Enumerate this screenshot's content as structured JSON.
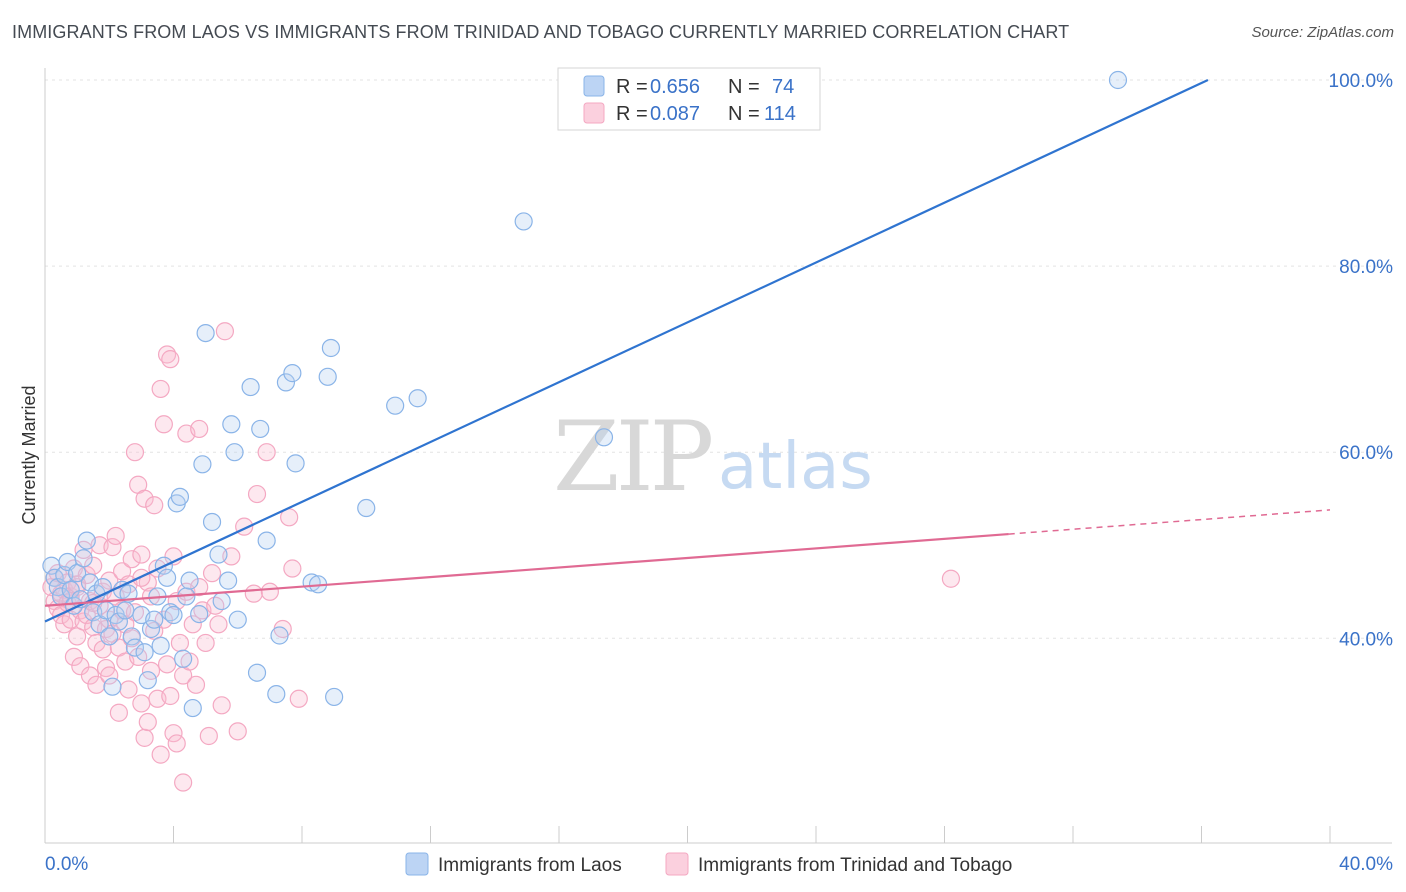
{
  "title": "IMMIGRANTS FROM LAOS VS IMMIGRANTS FROM TRINIDAD AND TOBAGO CURRENTLY MARRIED CORRELATION CHART",
  "source": "Source: ZipAtlas.com",
  "watermark": {
    "zip": "ZIP",
    "atlas": "atlas"
  },
  "chart_data": {
    "type": "scatter",
    "title": "IMMIGRANTS FROM LAOS VS IMMIGRANTS FROM TRINIDAD AND TOBAGO CURRENTLY MARRIED CORRELATION CHART",
    "xlabel": "",
    "ylabel": "Currently Married",
    "xlim": [
      0,
      40
    ],
    "ylim": [
      18,
      102
    ],
    "x_tick_labels": [
      "0.0%",
      "40.0%"
    ],
    "y_ticks": [
      40,
      60,
      80,
      100
    ],
    "y_tick_labels": [
      "40.0%",
      "60.0%",
      "80.0%",
      "100.0%"
    ],
    "legend": [
      {
        "label_r": "R = ",
        "r": "0.656",
        "label_n": "N = ",
        "n": "74"
      },
      {
        "label_r": "R = ",
        "r": "0.087",
        "label_n": "N = ",
        "n": "114"
      }
    ],
    "series": [
      {
        "name": "Immigrants from Laos",
        "color": "#8ab4e8",
        "line_color": "#2f74d0",
        "trend": {
          "x0": 0,
          "y0": 41.8,
          "x1": 36.2,
          "y1": 100,
          "dashed_to": null
        },
        "points": [
          [
            0.2,
            47.8
          ],
          [
            0.3,
            46.5
          ],
          [
            0.4,
            45.5
          ],
          [
            0.5,
            44.5
          ],
          [
            0.6,
            46.8
          ],
          [
            0.7,
            48.2
          ],
          [
            0.8,
            45.2
          ],
          [
            0.9,
            43.5
          ],
          [
            1.0,
            47.0
          ],
          [
            1.1,
            44.2
          ],
          [
            1.2,
            48.6
          ],
          [
            1.3,
            50.5
          ],
          [
            1.4,
            46.0
          ],
          [
            1.5,
            42.8
          ],
          [
            1.6,
            44.8
          ],
          [
            1.7,
            41.5
          ],
          [
            1.8,
            45.5
          ],
          [
            1.9,
            43.0
          ],
          [
            2.0,
            40.2
          ],
          [
            2.1,
            34.8
          ],
          [
            2.2,
            42.5
          ],
          [
            2.3,
            41.8
          ],
          [
            2.4,
            45.2
          ],
          [
            2.5,
            43.0
          ],
          [
            2.6,
            44.8
          ],
          [
            2.7,
            40.2
          ],
          [
            2.8,
            39.0
          ],
          [
            3.0,
            42.5
          ],
          [
            3.1,
            38.5
          ],
          [
            3.2,
            35.5
          ],
          [
            3.3,
            41.0
          ],
          [
            3.4,
            42.0
          ],
          [
            3.5,
            44.5
          ],
          [
            3.6,
            39.2
          ],
          [
            3.7,
            47.8
          ],
          [
            3.8,
            46.5
          ],
          [
            3.9,
            42.8
          ],
          [
            4.0,
            42.5
          ],
          [
            4.1,
            54.5
          ],
          [
            4.2,
            55.2
          ],
          [
            4.3,
            37.8
          ],
          [
            4.4,
            44.5
          ],
          [
            4.5,
            46.2
          ],
          [
            4.6,
            32.5
          ],
          [
            4.8,
            42.6
          ],
          [
            4.9,
            58.7
          ],
          [
            5.0,
            72.8
          ],
          [
            5.2,
            52.5
          ],
          [
            5.4,
            49.0
          ],
          [
            5.5,
            44.0
          ],
          [
            5.7,
            46.2
          ],
          [
            5.8,
            63.0
          ],
          [
            5.9,
            60.0
          ],
          [
            6.0,
            42.0
          ],
          [
            6.4,
            67.0
          ],
          [
            6.6,
            36.3
          ],
          [
            6.7,
            62.5
          ],
          [
            6.9,
            50.5
          ],
          [
            7.2,
            34.0
          ],
          [
            7.3,
            40.3
          ],
          [
            7.5,
            67.5
          ],
          [
            7.7,
            68.5
          ],
          [
            7.8,
            58.8
          ],
          [
            8.3,
            46.0
          ],
          [
            8.5,
            45.8
          ],
          [
            8.8,
            68.1
          ],
          [
            8.9,
            71.2
          ],
          [
            9.0,
            33.7
          ],
          [
            10.0,
            54.0
          ],
          [
            10.9,
            65.0
          ],
          [
            11.6,
            65.8
          ],
          [
            14.9,
            84.8
          ],
          [
            17.4,
            61.6
          ],
          [
            33.4,
            100.0
          ]
        ]
      },
      {
        "name": "Immigrants from Trinidad and Tobago",
        "color": "#f4a8c2",
        "line_color": "#e06a93",
        "trend": {
          "x0": 0,
          "y0": 43.5,
          "x1": 30.0,
          "y1": 51.2,
          "dashed_to": [
            40.0,
            53.8
          ]
        },
        "points": [
          [
            0.2,
            45.5
          ],
          [
            0.3,
            44.0
          ],
          [
            0.3,
            46.5
          ],
          [
            0.4,
            43.2
          ],
          [
            0.4,
            47.0
          ],
          [
            0.5,
            44.8
          ],
          [
            0.5,
            42.5
          ],
          [
            0.6,
            45.2
          ],
          [
            0.6,
            41.5
          ],
          [
            0.7,
            46.0
          ],
          [
            0.7,
            43.8
          ],
          [
            0.8,
            42.0
          ],
          [
            0.8,
            44.5
          ],
          [
            0.9,
            38.0
          ],
          [
            0.9,
            47.5
          ],
          [
            1.0,
            40.2
          ],
          [
            1.0,
            45.5
          ],
          [
            1.1,
            43.0
          ],
          [
            1.1,
            37.0
          ],
          [
            1.2,
            41.8
          ],
          [
            1.2,
            49.5
          ],
          [
            1.3,
            42.5
          ],
          [
            1.3,
            46.8
          ],
          [
            1.4,
            36.0
          ],
          [
            1.4,
            44.0
          ],
          [
            1.5,
            41.2
          ],
          [
            1.5,
            47.8
          ],
          [
            1.6,
            39.5
          ],
          [
            1.6,
            35.0
          ],
          [
            1.7,
            43.5
          ],
          [
            1.7,
            50.0
          ],
          [
            1.8,
            45.0
          ],
          [
            1.8,
            38.8
          ],
          [
            1.9,
            41.0
          ],
          [
            1.9,
            36.8
          ],
          [
            2.0,
            46.2
          ],
          [
            2.0,
            42.0
          ],
          [
            2.1,
            49.8
          ],
          [
            2.1,
            40.5
          ],
          [
            2.2,
            51.0
          ],
          [
            2.2,
            44.5
          ],
          [
            2.3,
            39.0
          ],
          [
            2.3,
            32.0
          ],
          [
            2.4,
            43.0
          ],
          [
            2.4,
            47.2
          ],
          [
            2.5,
            41.5
          ],
          [
            2.5,
            37.5
          ],
          [
            2.6,
            45.8
          ],
          [
            2.6,
            34.5
          ],
          [
            2.7,
            48.5
          ],
          [
            2.7,
            40.0
          ],
          [
            2.8,
            60.0
          ],
          [
            2.8,
            42.8
          ],
          [
            2.9,
            56.5
          ],
          [
            2.9,
            38.0
          ],
          [
            3.0,
            49.0
          ],
          [
            3.0,
            33.0
          ],
          [
            3.1,
            55.0
          ],
          [
            3.1,
            29.3
          ],
          [
            3.2,
            46.0
          ],
          [
            3.2,
            31.0
          ],
          [
            3.3,
            44.5
          ],
          [
            3.3,
            36.5
          ],
          [
            3.4,
            54.3
          ],
          [
            3.4,
            40.8
          ],
          [
            3.5,
            33.5
          ],
          [
            3.5,
            47.5
          ],
          [
            3.6,
            66.8
          ],
          [
            3.6,
            27.5
          ],
          [
            3.7,
            63.0
          ],
          [
            3.7,
            42.0
          ],
          [
            3.8,
            70.5
          ],
          [
            3.8,
            37.2
          ],
          [
            3.9,
            70.0
          ],
          [
            3.9,
            33.8
          ],
          [
            4.0,
            29.8
          ],
          [
            4.0,
            48.8
          ],
          [
            4.1,
            44.0
          ],
          [
            4.1,
            28.7
          ],
          [
            4.2,
            39.5
          ],
          [
            4.3,
            36.0
          ],
          [
            4.3,
            24.5
          ],
          [
            4.4,
            62.0
          ],
          [
            4.4,
            45.0
          ],
          [
            4.5,
            37.5
          ],
          [
            4.6,
            41.5
          ],
          [
            4.7,
            35.0
          ],
          [
            4.8,
            62.5
          ],
          [
            4.8,
            45.5
          ],
          [
            4.9,
            43.0
          ],
          [
            5.0,
            39.5
          ],
          [
            5.1,
            29.5
          ],
          [
            5.2,
            47.0
          ],
          [
            5.3,
            43.5
          ],
          [
            5.4,
            41.5
          ],
          [
            5.5,
            32.8
          ],
          [
            5.6,
            73.0
          ],
          [
            5.8,
            48.8
          ],
          [
            6.0,
            30.0
          ],
          [
            6.2,
            52.0
          ],
          [
            6.5,
            44.8
          ],
          [
            6.6,
            55.5
          ],
          [
            6.9,
            60.0
          ],
          [
            7.0,
            45.0
          ],
          [
            7.4,
            41.0
          ],
          [
            7.6,
            53.0
          ],
          [
            7.7,
            47.5
          ],
          [
            7.9,
            33.5
          ],
          [
            3.0,
            46.5
          ],
          [
            2.0,
            36.0
          ],
          [
            1.0,
            45.8
          ],
          [
            0.8,
            44.0
          ],
          [
            1.5,
            43.8
          ],
          [
            28.2,
            46.4
          ]
        ]
      }
    ]
  },
  "bottom_legend": [
    {
      "label": "Immigrants from Laos"
    },
    {
      "label": "Immigrants from Trinidad and Tobago"
    }
  ]
}
